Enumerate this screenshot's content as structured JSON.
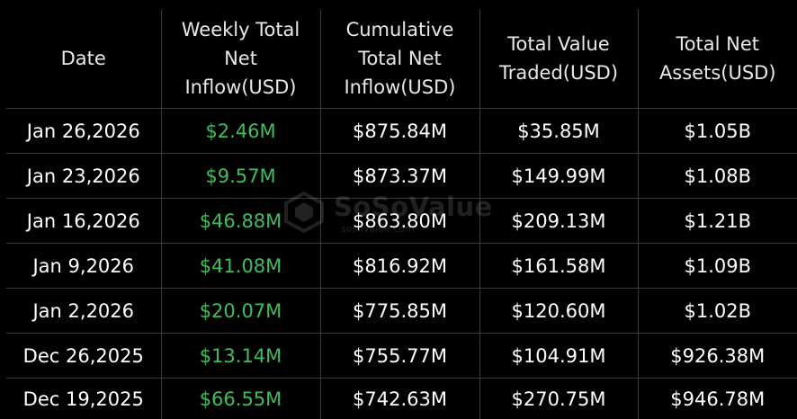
{
  "table": {
    "headers": [
      [
        "Date"
      ],
      [
        "Weekly Total",
        "Net",
        "Inflow(USD)"
      ],
      [
        "Cumulative",
        "Total Net",
        "Inflow(USD)"
      ],
      [
        "Total Value",
        "Traded(USD)"
      ],
      [
        "Total Net",
        "Assets(USD)"
      ]
    ],
    "rows": [
      [
        "Jan 26,2026",
        "$2.46M",
        "$875.84M",
        "$35.85M",
        "$1.05B"
      ],
      [
        "Jan 23,2026",
        "$9.57M",
        "$873.37M",
        "$149.99M",
        "$1.08B"
      ],
      [
        "Jan 16,2026",
        "$46.88M",
        "$863.80M",
        "$209.13M",
        "$1.21B"
      ],
      [
        "Jan 9,2026",
        "$41.08M",
        "$816.92M",
        "$161.58M",
        "$1.09B"
      ],
      [
        "Jan 2,2026",
        "$20.07M",
        "$775.85M",
        "$120.60M",
        "$1.02B"
      ],
      [
        "Dec 26,2025",
        "$13.14M",
        "$755.77M",
        "$104.91M",
        "$926.38M"
      ],
      [
        "Dec 19,2025",
        "$66.55M",
        "$742.63M",
        "$270.75M",
        "$946.78M"
      ]
    ]
  },
  "watermark": {
    "brand": "SoSoValue",
    "site": "sosovalue.com"
  },
  "colors": {
    "background": "#000000",
    "positive": "#3fbd5e",
    "text": "#ffffff",
    "gridline": "#3a3a3a"
  }
}
